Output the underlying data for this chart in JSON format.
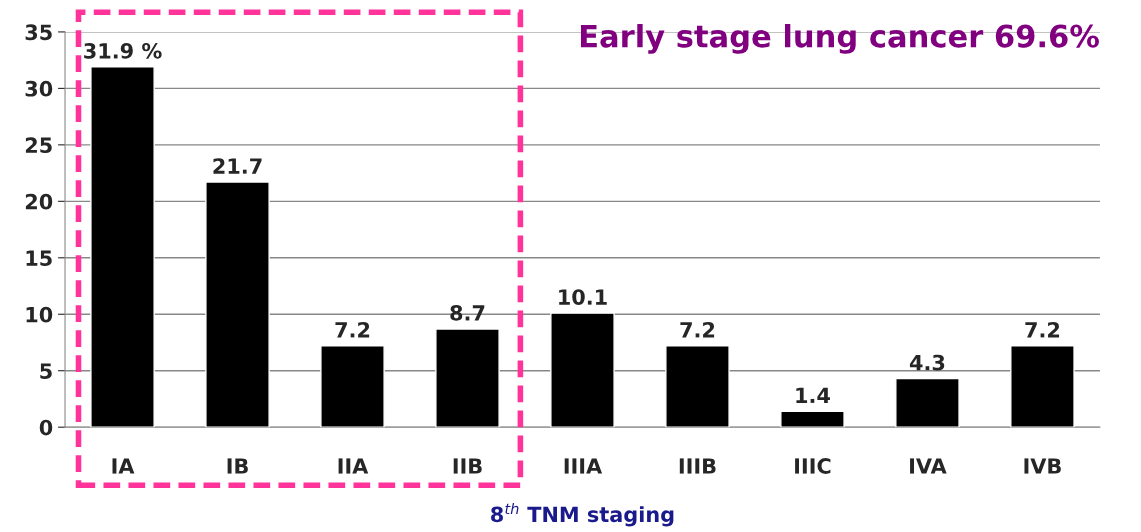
{
  "chart_data": {
    "type": "bar",
    "categories": [
      "IA",
      "IB",
      "IIA",
      "IIB",
      "IIIA",
      "IIIB",
      "IIIC",
      "IVA",
      "IVB"
    ],
    "values": [
      31.9,
      21.7,
      7.2,
      8.7,
      10.1,
      7.2,
      1.4,
      4.3,
      7.2
    ],
    "value_labels": [
      "31.9 %",
      "21.7",
      "7.2",
      "8.7",
      "10.1",
      "7.2",
      "1.4",
      "4.3",
      "7.2"
    ],
    "color": "#000000",
    "xlabel": "8$^{th}$ TNM staging",
    "annotations": [
      "Early stage lung cancer 69.6%"
    ],
    "ylim": [
      0,
      35
    ],
    "yticks": [
      0,
      5,
      10,
      15,
      20,
      25,
      30,
      35
    ],
    "grid": "y",
    "legend": false
  }
}
